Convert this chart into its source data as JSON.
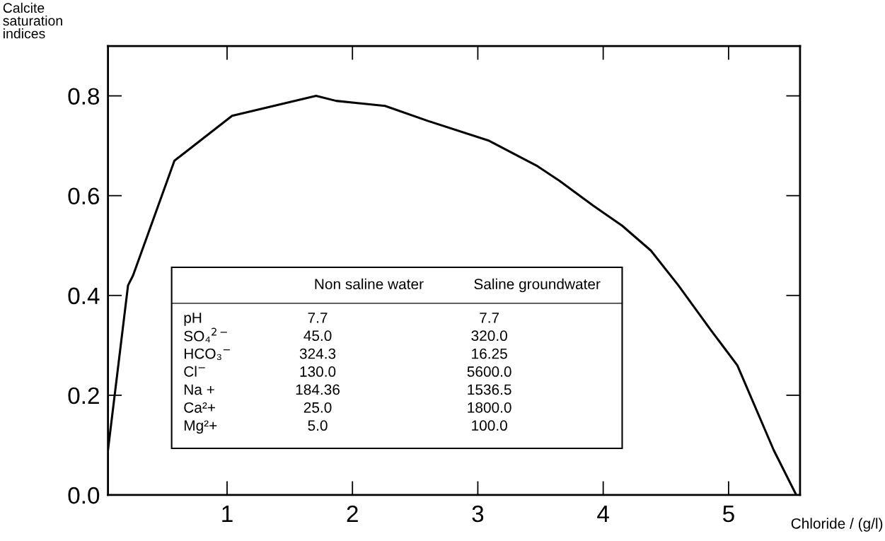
{
  "chart_data": {
    "type": "line",
    "xlabel": "Chloride / (g/l)",
    "ylabel": "Calcite\nsaturation\nindices",
    "x": [
      0.05,
      0.21,
      0.25,
      0.58,
      1.04,
      1.71,
      1.87,
      2.26,
      2.6,
      3.09,
      3.47,
      3.65,
      3.92,
      4.15,
      4.38,
      4.6,
      4.86,
      5.07,
      5.36,
      5.54
    ],
    "series": [
      {
        "color": "#000000",
        "values": [
          0.09,
          0.42,
          0.44,
          0.67,
          0.76,
          0.8,
          0.79,
          0.78,
          0.75,
          0.71,
          0.66,
          0.63,
          0.58,
          0.54,
          0.49,
          0.42,
          0.33,
          0.26,
          0.09,
          0.0
        ]
      }
    ],
    "xlim": [
      0.05,
      5.57
    ],
    "ylim": [
      0,
      0.9
    ],
    "xticks": [
      1,
      2,
      3,
      4,
      5
    ],
    "yticks": [
      {
        "value": 0,
        "label": "0.0"
      },
      0.2,
      0.4,
      0.6,
      0.8
    ],
    "grid": false,
    "marker": "none",
    "line_style": "solid",
    "annotations": [
      "Non saline water",
      "Saline groundwater",
      "pH",
      "7.7",
      "7.7",
      "SO₄$^{2−}$",
      "45.0",
      "320.0",
      "HCO₃$^{−}$",
      "324.3",
      "16.25",
      "Cl$^{−}$",
      "130.0",
      "5600.0",
      "Na +",
      "184.36",
      "1536.5",
      "Ca²+",
      "25.0",
      "1800.0",
      "Mg²+",
      "5.0",
      "100.0"
    ]
  }
}
